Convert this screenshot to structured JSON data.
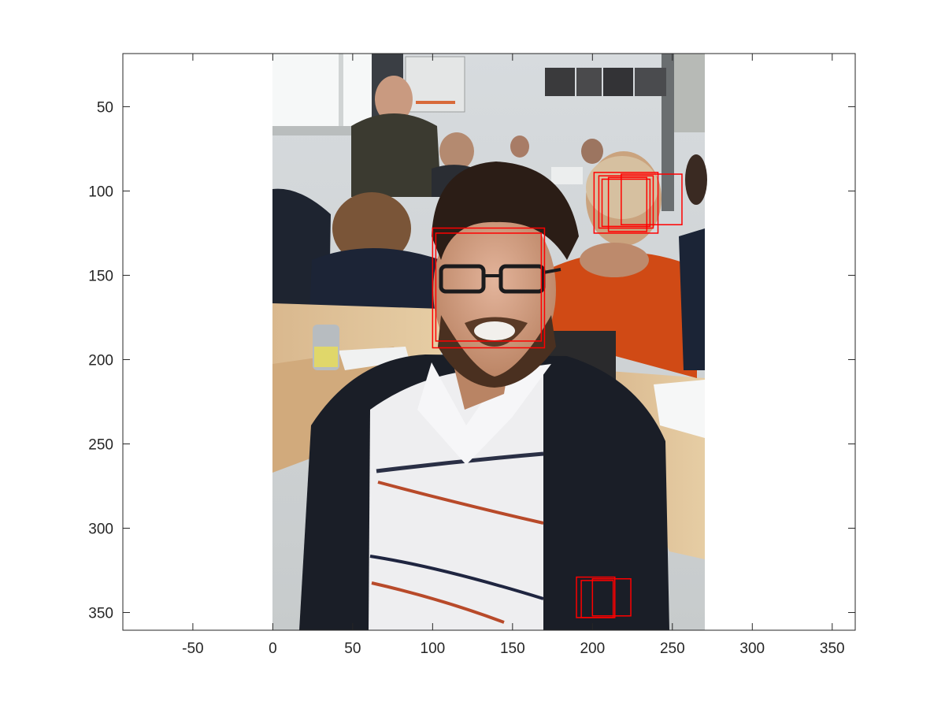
{
  "plot": {
    "xlim": [
      -93.8,
      364.4
    ],
    "ylim_reversed": [
      18.5,
      360.5
    ],
    "x_ticks": [
      -50,
      0,
      50,
      100,
      150,
      200,
      250,
      300,
      350
    ],
    "y_ticks": [
      50,
      100,
      150,
      200,
      250,
      300,
      350
    ],
    "image_extent": {
      "x": [
        0,
        270
      ],
      "y": [
        18.5,
        360.5
      ]
    },
    "colors": {
      "box": "#ff0000",
      "axis": "#262626",
      "background": "#ffffff"
    }
  },
  "image": {
    "subject": "classroom photo: bearded man with glasses in foreground, students seated at desks behind"
  },
  "detections": [
    {
      "x": 100,
      "y": 122,
      "w": 70,
      "h": 71
    },
    {
      "x": 102,
      "y": 125,
      "w": 66,
      "h": 64
    },
    {
      "x": 201,
      "y": 89,
      "w": 40,
      "h": 36
    },
    {
      "x": 204,
      "y": 91,
      "w": 34,
      "h": 31
    },
    {
      "x": 206,
      "y": 93,
      "w": 30,
      "h": 28
    },
    {
      "x": 210,
      "y": 92,
      "w": 24,
      "h": 32
    },
    {
      "x": 218,
      "y": 90,
      "w": 38,
      "h": 30
    },
    {
      "x": 190,
      "y": 329,
      "w": 24,
      "h": 24
    },
    {
      "x": 200,
      "y": 330,
      "w": 24,
      "h": 22
    },
    {
      "x": 193,
      "y": 331,
      "w": 20,
      "h": 22
    }
  ]
}
